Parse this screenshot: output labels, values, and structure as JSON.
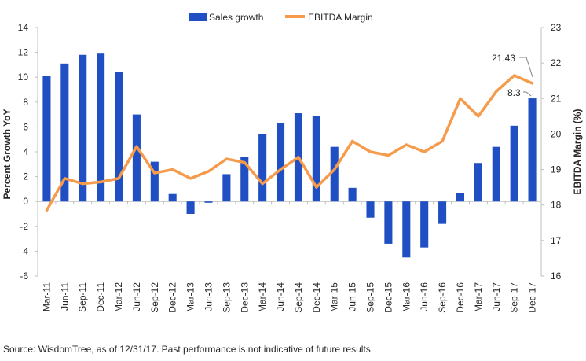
{
  "chart_data": {
    "type": "bar+line",
    "categories": [
      "Mar-11",
      "Jun-11",
      "Sep-11",
      "Dec-11",
      "Mar-12",
      "Jun-12",
      "Sep-12",
      "Dec-12",
      "Mar-13",
      "Jun-13",
      "Sep-13",
      "Dec-13",
      "Mar-14",
      "Jun-14",
      "Sep-14",
      "Dec-14",
      "Mar-15",
      "Jun-15",
      "Sep-15",
      "Dec-15",
      "Mar-16",
      "Jun-16",
      "Sep-16",
      "Dec-16",
      "Mar-17",
      "Jun-17",
      "Sep-17",
      "Dec-17"
    ],
    "series": [
      {
        "name": "Sales growth",
        "type": "bar",
        "axis": "left",
        "color": "#1f4fc2",
        "values": [
          10.1,
          11.1,
          11.8,
          11.9,
          10.4,
          7.0,
          3.2,
          0.6,
          -1.0,
          -0.1,
          2.2,
          3.6,
          5.4,
          6.3,
          7.1,
          6.9,
          4.4,
          1.1,
          -1.3,
          -3.4,
          -4.5,
          -3.7,
          -1.8,
          0.7,
          3.1,
          4.4,
          6.1,
          8.3
        ]
      },
      {
        "name": "EBITDA Margin",
        "type": "line",
        "axis": "right",
        "color": "#f59b4b",
        "values": [
          17.85,
          18.75,
          18.6,
          18.65,
          18.75,
          19.65,
          18.9,
          19.0,
          18.75,
          18.95,
          19.3,
          19.2,
          18.6,
          19.0,
          19.35,
          18.5,
          19.0,
          19.8,
          19.5,
          19.4,
          19.7,
          19.5,
          19.8,
          21.0,
          20.5,
          21.2,
          21.65,
          21.43
        ]
      }
    ],
    "y_left": {
      "label": "Percent Growth YoY",
      "min": -6,
      "max": 14,
      "ticks": [
        -6,
        -4,
        -2,
        0,
        2,
        4,
        6,
        8,
        10,
        12,
        14
      ]
    },
    "y_right": {
      "label": "EBITDA Margin (%)",
      "min": 16,
      "max": 23,
      "ticks": [
        16,
        17,
        18,
        19,
        20,
        21,
        22,
        23
      ]
    },
    "legend": {
      "placement": "top-center"
    },
    "annotations": [
      {
        "label": "21.43",
        "series": "EBITDA Margin",
        "category": "Dec-17"
      },
      {
        "label": "8.3",
        "series": "Sales growth",
        "category": "Dec-17"
      }
    ]
  },
  "source_note": "Source: WisdomTree, as of 12/31/17. Past performance is not indicative of future results."
}
